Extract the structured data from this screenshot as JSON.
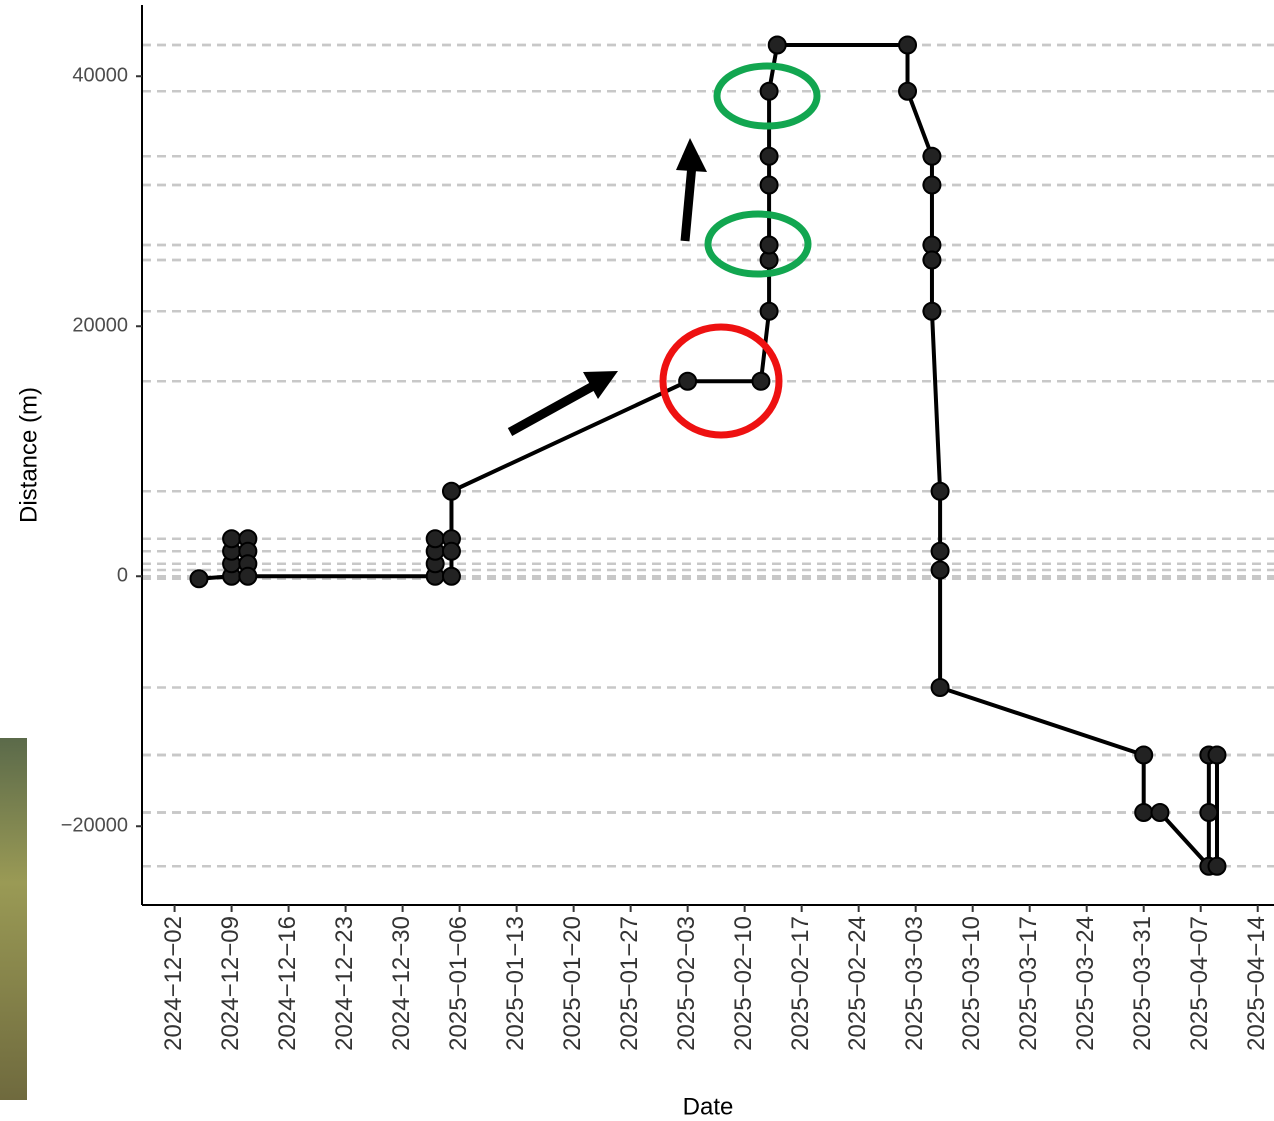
{
  "chart_data": {
    "type": "line",
    "x_label": "Date",
    "y_label": "Distance (m)",
    "x": [
      "2024-12-05",
      "2024-12-09",
      "2024-12-09",
      "2024-12-09",
      "2024-12-09",
      "2024-12-11",
      "2024-12-11",
      "2024-12-11",
      "2024-12-11",
      "2025-01-03",
      "2025-01-03",
      "2025-01-03",
      "2025-01-03",
      "2025-01-05",
      "2025-01-05",
      "2025-01-05",
      "2025-01-05",
      "2025-02-03",
      "2025-02-12",
      "2025-02-13",
      "2025-02-13",
      "2025-02-13",
      "2025-02-13",
      "2025-02-13",
      "2025-02-13",
      "2025-02-14",
      "2025-03-02",
      "2025-03-02",
      "2025-03-05",
      "2025-03-05",
      "2025-03-05",
      "2025-03-05",
      "2025-03-05",
      "2025-03-06",
      "2025-03-06",
      "2025-03-06",
      "2025-03-06",
      "2025-03-31",
      "2025-03-31",
      "2025-04-02",
      "2025-04-08",
      "2025-04-08",
      "2025-04-08",
      "2025-04-09",
      "2025-04-09"
    ],
    "values": [
      -200,
      0,
      1000,
      2000,
      3000,
      3000,
      2000,
      1000,
      0,
      0,
      1000,
      2000,
      3000,
      3000,
      2000,
      0,
      6800,
      15600,
      15600,
      21200,
      25300,
      26500,
      31300,
      33600,
      38800,
      42500,
      42500,
      38800,
      33600,
      31300,
      26500,
      25300,
      21200,
      6800,
      2000,
      500,
      -8900,
      -14300,
      -18900,
      -18900,
      -23200,
      -18900,
      -14300,
      -14300,
      -23200
    ],
    "color": "#000000",
    "reference_lines": true,
    "ylim": [
      -26300,
      45700
    ],
    "yticks": [
      {
        "value": -20000,
        "label": "−20000"
      },
      0,
      20000,
      40000
    ],
    "xlim": [
      "2024-11-28",
      "2025-04-16"
    ],
    "xticks": [
      {
        "value": "2024-12-02",
        "label": "2024−12−02"
      },
      {
        "value": "2024-12-09",
        "label": "2024−12−09"
      },
      {
        "value": "2024-12-16",
        "label": "2024−12−16"
      },
      {
        "value": "2024-12-23",
        "label": "2024−12−23"
      },
      {
        "value": "2024-12-30",
        "label": "2024−12−30"
      },
      {
        "value": "2025-01-06",
        "label": "2025−01−06"
      },
      {
        "value": "2025-01-13",
        "label": "2025−01−13"
      },
      {
        "value": "2025-01-20",
        "label": "2025−01−20"
      },
      {
        "value": "2025-01-27",
        "label": "2025−01−27"
      },
      {
        "value": "2025-02-03",
        "label": "2025−02−03"
      },
      {
        "value": "2025-02-10",
        "label": "2025−02−10"
      },
      {
        "value": "2025-02-17",
        "label": "2025−02−17"
      },
      {
        "value": "2025-02-24",
        "label": "2025−02−24"
      },
      {
        "value": "2025-03-03",
        "label": "2025−03−03"
      },
      {
        "value": "2025-03-10",
        "label": "2025−03−10"
      },
      {
        "value": "2025-03-17",
        "label": "2025−03−17"
      },
      {
        "value": "2025-03-24",
        "label": "2025−03−24"
      },
      {
        "value": "2025-03-31",
        "label": "2025−03−31"
      },
      {
        "value": "2025-04-07",
        "label": "2025−04−07"
      },
      {
        "value": "2025-04-14",
        "label": "2025−04−14"
      }
    ]
  }
}
